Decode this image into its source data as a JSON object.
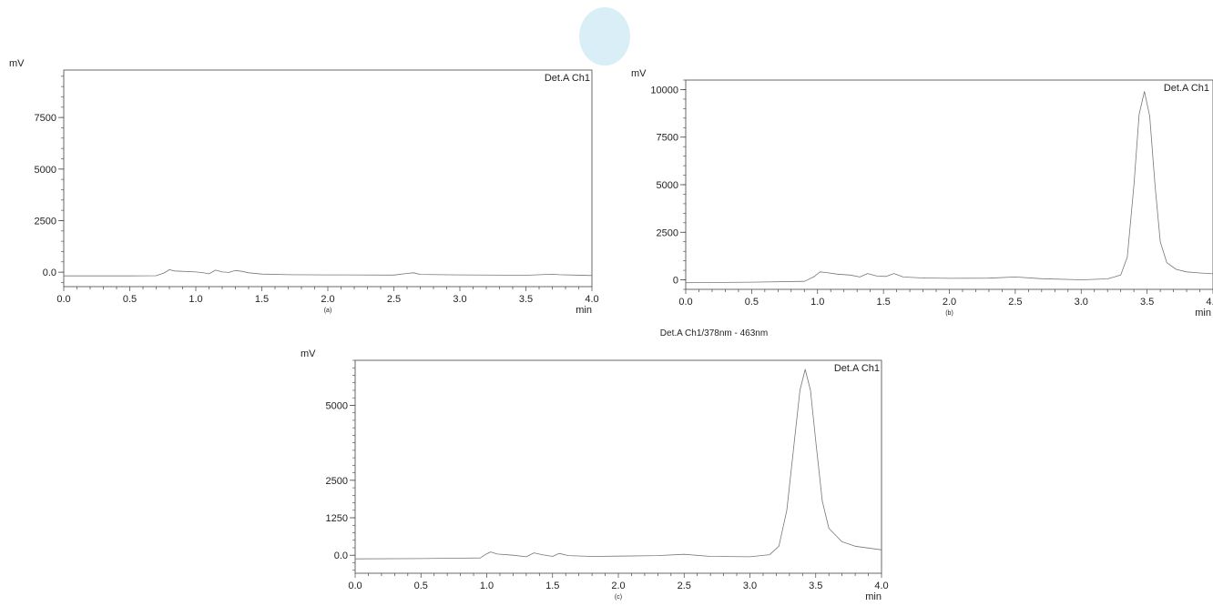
{
  "figure_note": "Det.A Ch1/378nm - 463nm",
  "chart_data": [
    {
      "type": "line",
      "caption": "(a)",
      "xlabel": "min",
      "ylabel": "mV",
      "legend": "Det.A Ch1",
      "legend_position": "top-right",
      "grid": false,
      "xlim": [
        0,
        4.0
      ],
      "ylim": [
        -700,
        9800
      ],
      "xticks": [
        0.0,
        0.5,
        1.0,
        1.5,
        2.0,
        2.5,
        3.0,
        3.5,
        4.0
      ],
      "xtick_labels": [
        "0.0",
        "0.5",
        "1.0",
        "1.5",
        "2.0",
        "2.5",
        "3.0",
        "3.5",
        "4.0"
      ],
      "yticks": [
        0,
        2500,
        5000,
        7500
      ],
      "ytick_labels": [
        "0.0",
        "2500",
        "5000",
        "7500"
      ],
      "series": [
        {
          "x": [
            0.0,
            0.5,
            0.7,
            0.76,
            0.8,
            0.84,
            0.9,
            1.0,
            1.05,
            1.1,
            1.15,
            1.2,
            1.25,
            1.3,
            1.35,
            1.4,
            1.5,
            1.7,
            2.0,
            2.5,
            2.6,
            2.65,
            2.7,
            3.0,
            3.5,
            3.7,
            3.75,
            4.0
          ],
          "y": [
            -180,
            -180,
            -170,
            -40,
            120,
            60,
            40,
            10,
            -20,
            -80,
            100,
            10,
            -10,
            80,
            40,
            -30,
            -90,
            -120,
            -130,
            -140,
            -60,
            -30,
            -110,
            -130,
            -150,
            -100,
            -120,
            -160
          ]
        }
      ]
    },
    {
      "type": "line",
      "caption": "(b)",
      "xlabel": "min",
      "ylabel": "mV",
      "legend": "Det.A Ch1",
      "legend_position": "top-right",
      "grid": false,
      "xlim": [
        0,
        4.0
      ],
      "ylim": [
        -500,
        10500
      ],
      "xticks": [
        0.0,
        0.5,
        1.0,
        1.5,
        2.0,
        2.5,
        3.0,
        3.5,
        4.0
      ],
      "xtick_labels": [
        "0.0",
        "0.5",
        "1.0",
        "1.5",
        "2.0",
        "2.5",
        "3.0",
        "3.5",
        "4.0"
      ],
      "yticks": [
        0,
        2500,
        5000,
        7500,
        10000
      ],
      "ytick_labels": [
        "0",
        "2500",
        "5000",
        "7500",
        "10000"
      ],
      "series": [
        {
          "x": [
            0.0,
            0.5,
            0.9,
            0.97,
            1.02,
            1.07,
            1.15,
            1.25,
            1.32,
            1.38,
            1.45,
            1.52,
            1.58,
            1.65,
            1.8,
            2.0,
            2.3,
            2.5,
            2.7,
            3.0,
            3.2,
            3.3,
            3.35,
            3.4,
            3.44,
            3.48,
            3.52,
            3.56,
            3.6,
            3.65,
            3.72,
            3.8,
            3.9,
            4.0
          ],
          "y": [
            -150,
            -120,
            -80,
            150,
            420,
            380,
            300,
            250,
            150,
            330,
            200,
            180,
            330,
            150,
            100,
            80,
            90,
            150,
            60,
            0,
            50,
            250,
            1200,
            5000,
            8700,
            9900,
            8600,
            5000,
            2000,
            900,
            550,
            420,
            360,
            320
          ]
        }
      ]
    },
    {
      "type": "line",
      "caption": "(c)",
      "xlabel": "min",
      "ylabel": "mV",
      "legend": "Det.A Ch1",
      "legend_position": "top-right",
      "grid": false,
      "xlim": [
        0,
        4.0
      ],
      "ylim": [
        -600,
        6500
      ],
      "xticks": [
        0.0,
        0.5,
        1.0,
        1.5,
        2.0,
        2.5,
        3.0,
        3.5,
        4.0
      ],
      "xtick_labels": [
        "0.0",
        "0.5",
        "1.0",
        "1.5",
        "2.0",
        "2.5",
        "3.0",
        "3.5",
        "4.0"
      ],
      "yticks": [
        0,
        1250,
        2500,
        5000
      ],
      "ytick_labels": [
        "0.0",
        "1250",
        "2500",
        "5000"
      ],
      "series": [
        {
          "x": [
            0.0,
            0.5,
            0.95,
            1.0,
            1.03,
            1.08,
            1.2,
            1.3,
            1.36,
            1.42,
            1.5,
            1.55,
            1.62,
            1.8,
            2.0,
            2.3,
            2.5,
            2.7,
            3.0,
            3.15,
            3.22,
            3.28,
            3.33,
            3.38,
            3.42,
            3.46,
            3.5,
            3.55,
            3.6,
            3.7,
            3.8,
            4.0
          ],
          "y": [
            -120,
            -110,
            -90,
            50,
            110,
            40,
            0,
            -50,
            80,
            20,
            -40,
            60,
            -10,
            -40,
            -30,
            -10,
            30,
            -40,
            -50,
            20,
            300,
            1500,
            3500,
            5500,
            6200,
            5500,
            3800,
            1800,
            900,
            450,
            300,
            180
          ]
        }
      ]
    }
  ]
}
